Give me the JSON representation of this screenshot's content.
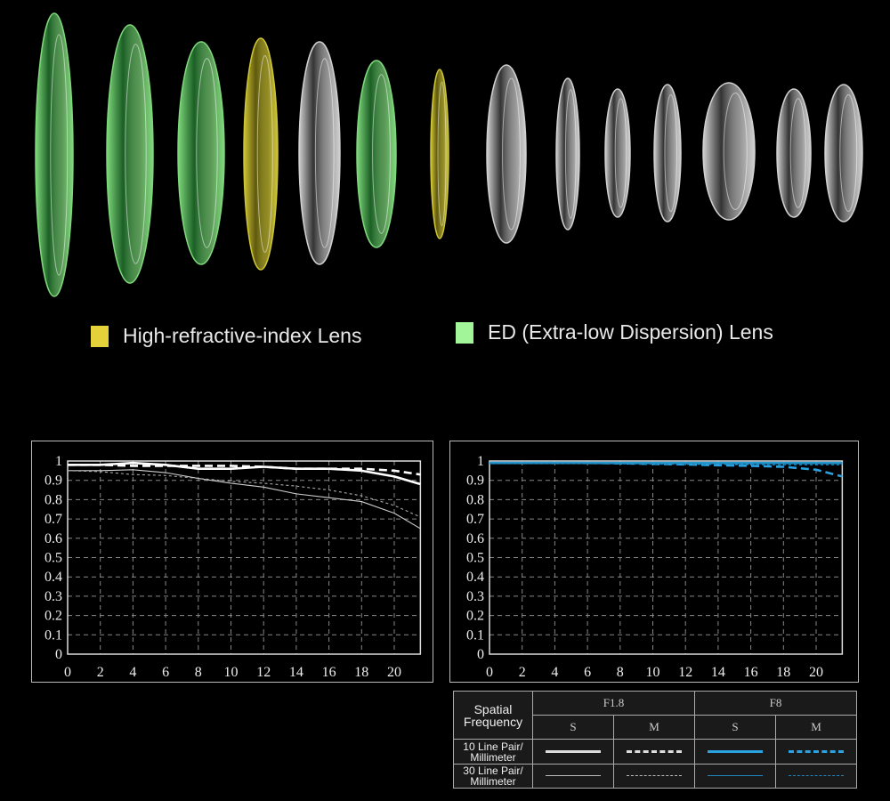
{
  "legend": {
    "high_refractive": {
      "label": "High-refractive-index Lens",
      "color": "#e3d23a"
    },
    "ed": {
      "label": "ED (Extra-low Dispersion) Lens",
      "color": "#a3f59a"
    }
  },
  "lens_elements": [
    "ed",
    "ed",
    "ed",
    "high-refractive",
    "clear",
    "ed",
    "high-refractive",
    "clear",
    "clear",
    "clear",
    "clear",
    "clear",
    "clear",
    "clear"
  ],
  "chart_data": [
    {
      "type": "line",
      "title": "F1.8",
      "x": [
        0,
        2,
        4,
        6,
        8,
        10,
        12,
        14,
        16,
        18,
        20,
        21.6
      ],
      "xticks": [
        "0",
        "2",
        "4",
        "6",
        "8",
        "10",
        "12",
        "14",
        "16",
        "18",
        "20"
      ],
      "yticks": [
        "0",
        "0.1",
        "0.2",
        "0.3",
        "0.4",
        "0.5",
        "0.6",
        "0.7",
        "0.8",
        "0.9",
        "1"
      ],
      "xlim": [
        0,
        21.6
      ],
      "ylim": [
        0,
        1
      ],
      "grid": true,
      "series": [
        {
          "name": "10 Line Pair/Millimeter S",
          "style": "solid-thick",
          "color": "#ffffff",
          "values": [
            0.98,
            0.98,
            0.99,
            0.98,
            0.96,
            0.96,
            0.97,
            0.96,
            0.96,
            0.95,
            0.92,
            0.88
          ]
        },
        {
          "name": "10 Line Pair/Millimeter M",
          "style": "dashed-thick",
          "color": "#ffffff",
          "values": [
            0.98,
            0.98,
            0.975,
            0.975,
            0.975,
            0.975,
            0.97,
            0.96,
            0.96,
            0.96,
            0.95,
            0.93
          ]
        },
        {
          "name": "30 Line Pair/Millimeter S",
          "style": "solid-thin",
          "color": "#cccccc",
          "values": [
            0.95,
            0.95,
            0.955,
            0.94,
            0.91,
            0.885,
            0.865,
            0.83,
            0.81,
            0.79,
            0.73,
            0.65
          ]
        },
        {
          "name": "30 Line Pair/Millimeter M",
          "style": "dashed-thin",
          "color": "#aaaaaa",
          "values": [
            0.95,
            0.945,
            0.93,
            0.925,
            0.91,
            0.895,
            0.885,
            0.87,
            0.85,
            0.82,
            0.77,
            0.71
          ]
        }
      ]
    },
    {
      "type": "line",
      "title": "F8",
      "x": [
        0,
        2,
        4,
        6,
        8,
        10,
        12,
        14,
        16,
        18,
        20,
        21.6
      ],
      "xticks": [
        "0",
        "2",
        "4",
        "6",
        "8",
        "10",
        "12",
        "14",
        "16",
        "18",
        "20"
      ],
      "yticks": [
        "0",
        "0.1",
        "0.2",
        "0.3",
        "0.4",
        "0.5",
        "0.6",
        "0.7",
        "0.8",
        "0.9",
        "1"
      ],
      "xlim": [
        0,
        21.6
      ],
      "ylim": [
        0,
        1
      ],
      "grid": true,
      "series": [
        {
          "name": "10 Line Pair/Millimeter S",
          "style": "solid-thick",
          "color": "#2aa3e0",
          "values": [
            0.99,
            0.99,
            0.99,
            0.99,
            0.99,
            0.99,
            0.99,
            0.99,
            0.99,
            0.99,
            0.99,
            0.99
          ]
        },
        {
          "name": "10 Line Pair/Millimeter M",
          "style": "dashed-thick",
          "color": "#2aa3e0",
          "values": [
            0.99,
            0.99,
            0.99,
            0.99,
            0.988,
            0.985,
            0.982,
            0.978,
            0.975,
            0.97,
            0.955,
            0.92
          ]
        },
        {
          "name": "30 Line Pair/Millimeter S",
          "style": "solid-thin",
          "color": "#1f86bd",
          "values": [
            0.99,
            0.99,
            0.99,
            0.99,
            0.99,
            0.99,
            0.99,
            0.99,
            0.99,
            0.99,
            0.99,
            0.99
          ]
        },
        {
          "name": "30 Line Pair/Millimeter M",
          "style": "dashed-thin",
          "color": "#1f86bd",
          "values": [
            0.988,
            0.988,
            0.987,
            0.986,
            0.985,
            0.984,
            0.983,
            0.982,
            0.981,
            0.98,
            0.98,
            0.98
          ]
        }
      ]
    }
  ],
  "table": {
    "corner": "Spatial Frequency",
    "apertures": [
      "F1.8",
      "F8"
    ],
    "positions": [
      "S",
      "M",
      "S",
      "M"
    ],
    "rows": [
      "10 Line Pair/ Millimeter",
      "30 Line Pair/ Millimeter"
    ]
  }
}
